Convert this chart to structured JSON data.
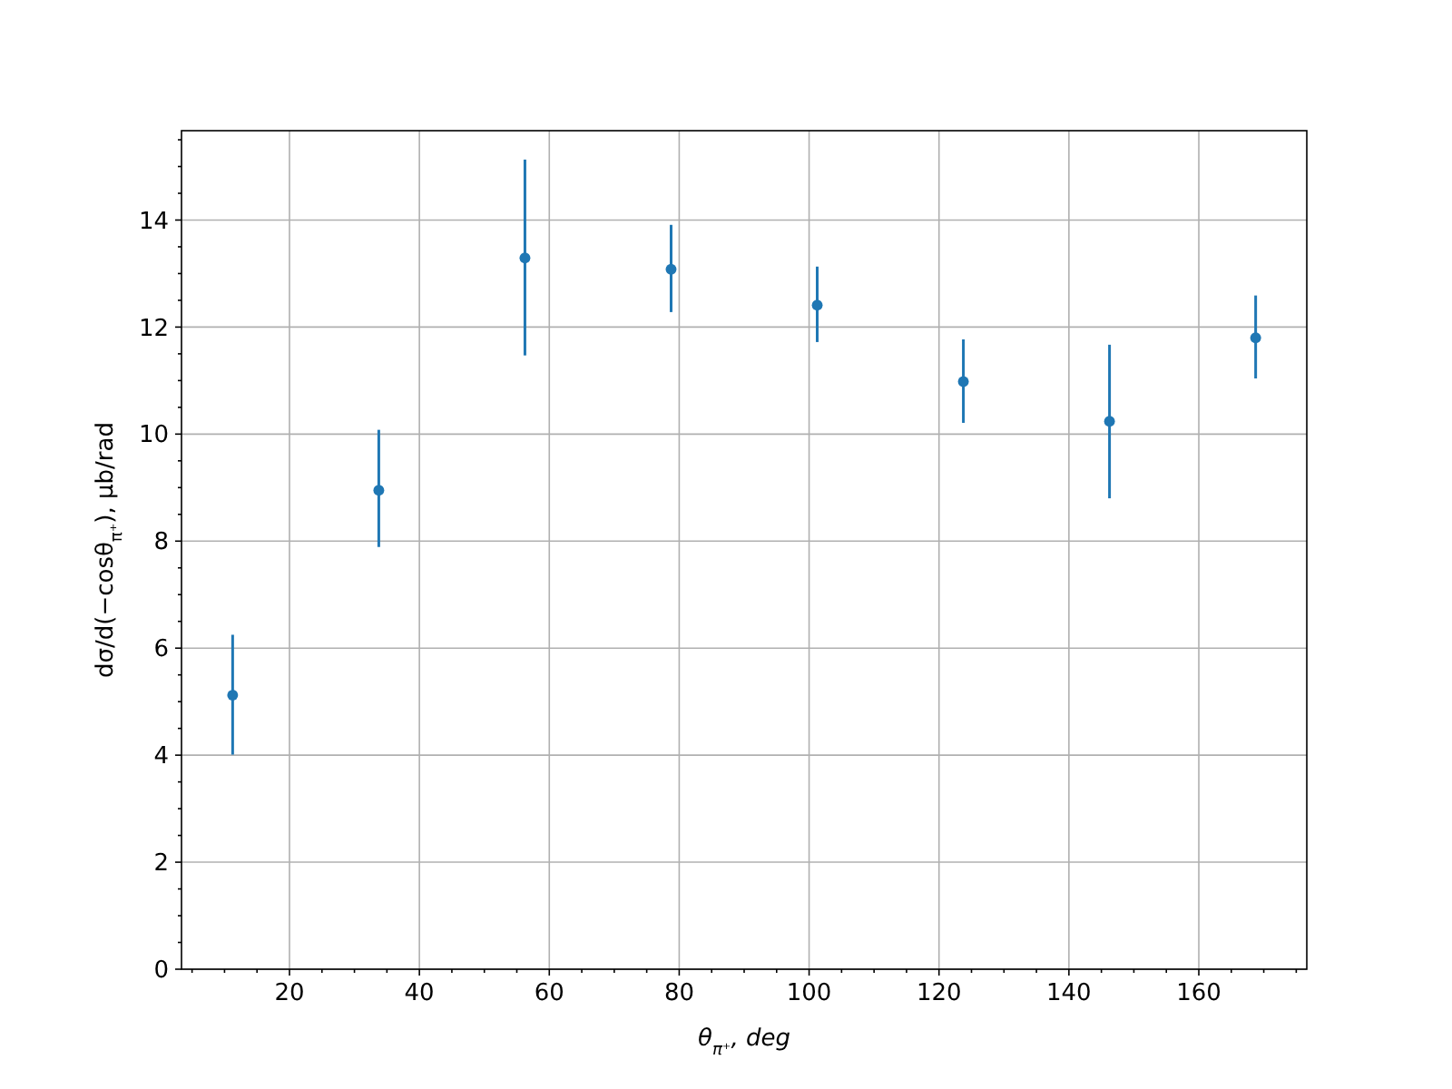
{
  "chart_data": {
    "type": "scatter",
    "xlabel": "θ$_{π⁺}$, deg",
    "ylabel": "dσ/d(−cosθ$_{π⁺}$), μb/rad",
    "x": [
      11.25,
      33.75,
      56.25,
      78.75,
      101.25,
      123.75,
      146.25,
      168.75
    ],
    "series": [
      {
        "color": "#1f77b4",
        "values": [
          5.12,
          8.95,
          13.29,
          13.08,
          12.41,
          10.98,
          10.24,
          11.8
        ],
        "errors": [
          [
            4.01,
            6.25
          ],
          [
            7.89,
            10.08
          ],
          [
            11.47,
            15.13
          ],
          [
            12.28,
            13.91
          ],
          [
            11.72,
            13.13
          ],
          [
            10.21,
            11.77
          ],
          [
            8.8,
            11.67
          ],
          [
            11.04,
            12.59
          ]
        ]
      }
    ],
    "xlim": [
      3.375,
      176.625
    ],
    "ylim": [
      0,
      15.67
    ],
    "xticks": [
      {
        "value": 5,
        "label": null
      },
      {
        "value": 10,
        "label": null
      },
      {
        "value": 15,
        "label": null
      },
      20,
      {
        "value": 25,
        "label": null
      },
      {
        "value": 30,
        "label": null
      },
      {
        "value": 35,
        "label": null
      },
      40,
      {
        "value": 45,
        "label": null
      },
      {
        "value": 50,
        "label": null
      },
      {
        "value": 55,
        "label": null
      },
      60,
      {
        "value": 65,
        "label": null
      },
      {
        "value": 70,
        "label": null
      },
      {
        "value": 75,
        "label": null
      },
      80,
      {
        "value": 85,
        "label": null
      },
      {
        "value": 90,
        "label": null
      },
      {
        "value": 95,
        "label": null
      },
      100,
      {
        "value": 105,
        "label": null
      },
      {
        "value": 110,
        "label": null
      },
      {
        "value": 115,
        "label": null
      },
      120,
      {
        "value": 125,
        "label": null
      },
      {
        "value": 130,
        "label": null
      },
      {
        "value": 135,
        "label": null
      },
      140,
      {
        "value": 145,
        "label": null
      },
      {
        "value": 150,
        "label": null
      },
      {
        "value": 155,
        "label": null
      },
      160,
      {
        "value": 165,
        "label": null
      },
      {
        "value": 170,
        "label": null
      },
      {
        "value": 175,
        "label": null
      }
    ],
    "yticks": [
      0,
      {
        "value": 0.5,
        "label": null
      },
      {
        "value": 1,
        "label": null
      },
      {
        "value": 1.5,
        "label": null
      },
      2,
      {
        "value": 2.5,
        "label": null
      },
      {
        "value": 3,
        "label": null
      },
      {
        "value": 3.5,
        "label": null
      },
      4,
      {
        "value": 4.5,
        "label": null
      },
      {
        "value": 5,
        "label": null
      },
      {
        "value": 5.5,
        "label": null
      },
      6,
      {
        "value": 6.5,
        "label": null
      },
      {
        "value": 7,
        "label": null
      },
      {
        "value": 7.5,
        "label": null
      },
      8,
      {
        "value": 8.5,
        "label": null
      },
      {
        "value": 9,
        "label": null
      },
      {
        "value": 9.5,
        "label": null
      },
      10,
      {
        "value": 10.5,
        "label": null
      },
      {
        "value": 11,
        "label": null
      },
      {
        "value": 11.5,
        "label": null
      },
      12,
      {
        "value": 12.5,
        "label": null
      },
      {
        "value": 13,
        "label": null
      },
      {
        "value": 13.5,
        "label": null
      },
      14,
      {
        "value": 14.5,
        "label": null
      },
      {
        "value": 15,
        "label": null
      },
      {
        "value": 15.5,
        "label": null
      }
    ],
    "grid": true,
    "marker": "circle"
  }
}
